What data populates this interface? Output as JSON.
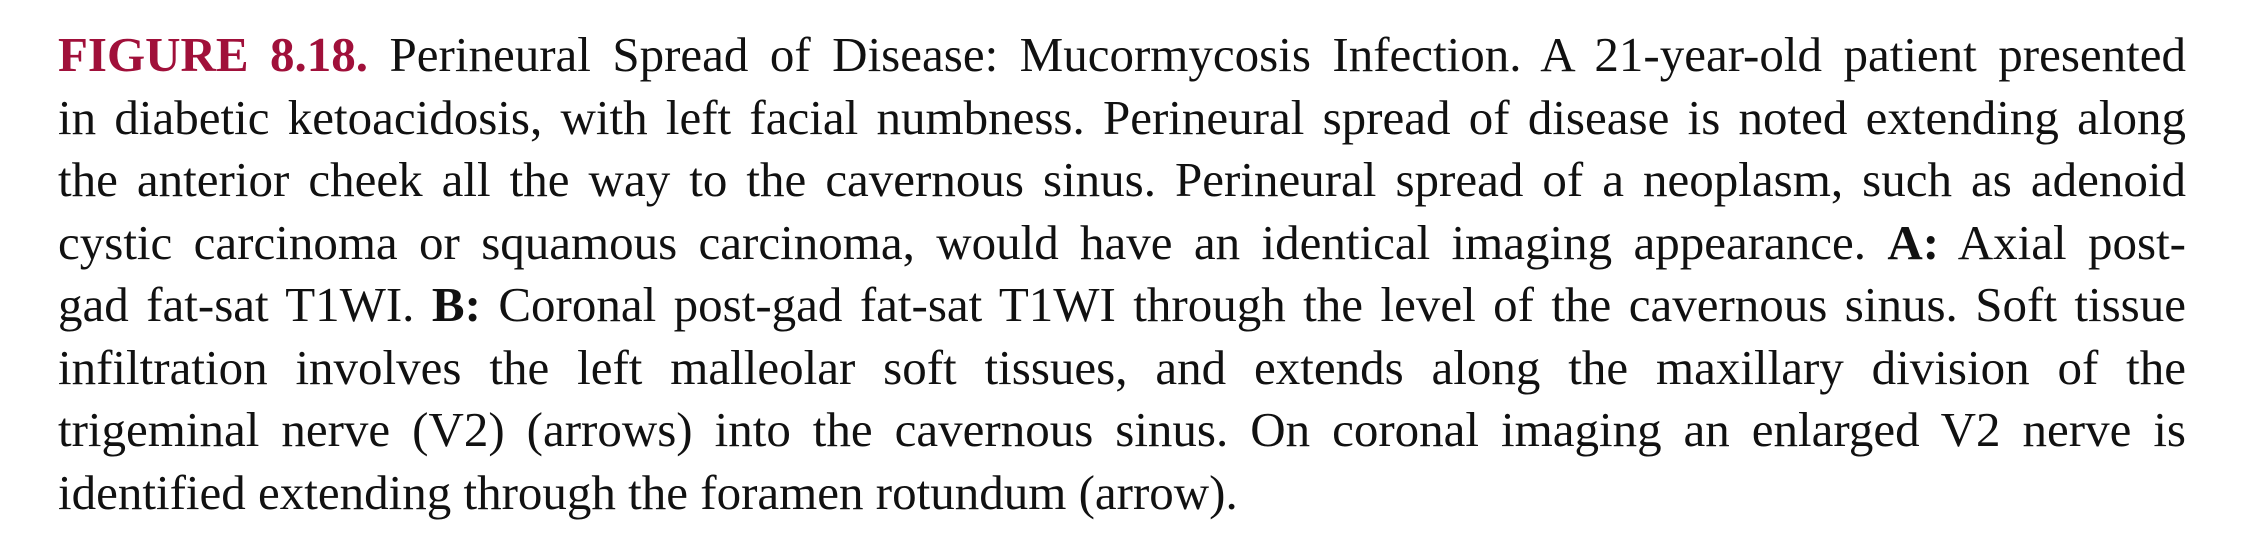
{
  "caption": {
    "figure_label": "FIGURE 8.18.",
    "lines": [
      "Perineural Spread of Disease: Mucormycosis Infection. A 21-year-old patient presented",
      "in diabetic ketoacidosis, with left facial numbness. Perineural spread of disease is noted extending along",
      "the anterior cheek all the way to the cavernous sinus. Perineural spread of a neoplasm, such as adenoid",
      "cystic carcinoma or squamous carcinoma, would have an identical imaging appearance.",
      "Axial post-",
      "gad fat-sat T1WI.",
      "Coronal post-gad fat-sat T1WI through the level of the cavernous sinus. Soft tissue",
      "infiltration involves the left malleolar soft tissues, and extends along the maxillary division of the",
      "trigeminal nerve (V2) (arrows) into the cavernous sinus. On coronal imaging an enlarged V2 nerve is",
      "identified extending through the foramen rotundum (arrow)."
    ],
    "panel_a_label": "A:",
    "panel_b_label": "B:"
  }
}
